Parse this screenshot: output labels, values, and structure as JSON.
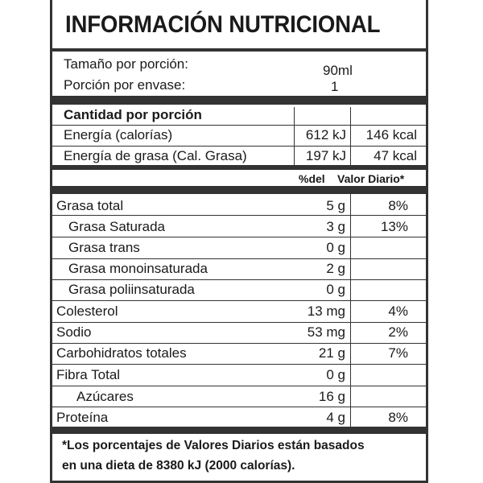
{
  "title": "INFORMACIÓN NUTRICIONAL",
  "serving": {
    "size_label": "Tamaño por porción:",
    "size_value": "90ml",
    "per_container_label": "Porción por envase:",
    "per_container_value": "1"
  },
  "amount_header": "Cantidad por porción",
  "energy": [
    {
      "label": "Energía (calorías)",
      "kj": "612 kJ",
      "kcal": "146 kcal"
    },
    {
      "label": "Energía de grasa (Cal. Grasa)",
      "kj": "197 kJ",
      "kcal": "47 kcal"
    }
  ],
  "dv_header": {
    "left": "%del",
    "right": "Valor Diario*"
  },
  "nutrients": [
    {
      "label": "Grasa total",
      "amount": "5 g",
      "dv": "8%"
    },
    {
      "label": "Grasa Saturada",
      "amount": "3 g",
      "dv": "13%"
    },
    {
      "label": "Grasa trans",
      "amount": "0 g",
      "dv": ""
    },
    {
      "label": "Grasa monoinsaturada",
      "amount": "2 g",
      "dv": ""
    },
    {
      "label": "Grasa poliinsaturada",
      "amount": "0 g",
      "dv": ""
    },
    {
      "label": "Colesterol",
      "amount": "13 mg",
      "dv": "4%"
    },
    {
      "label": "Sodio",
      "amount": "53 mg",
      "dv": "2%"
    },
    {
      "label": "Carbohidratos totales",
      "amount": "21 g",
      "dv": "7%"
    },
    {
      "label": "Fibra Total",
      "amount": "0 g",
      "dv": ""
    },
    {
      "label": "Azúcares",
      "amount": "16 g",
      "dv": ""
    },
    {
      "label": "Proteína",
      "amount": "4 g",
      "dv": "8%"
    }
  ],
  "footnote": {
    "line1": "*Los porcentajes de Valores Diarios están basados",
    "line2": "en una dieta de 8380 kJ (2000 calorías)."
  }
}
